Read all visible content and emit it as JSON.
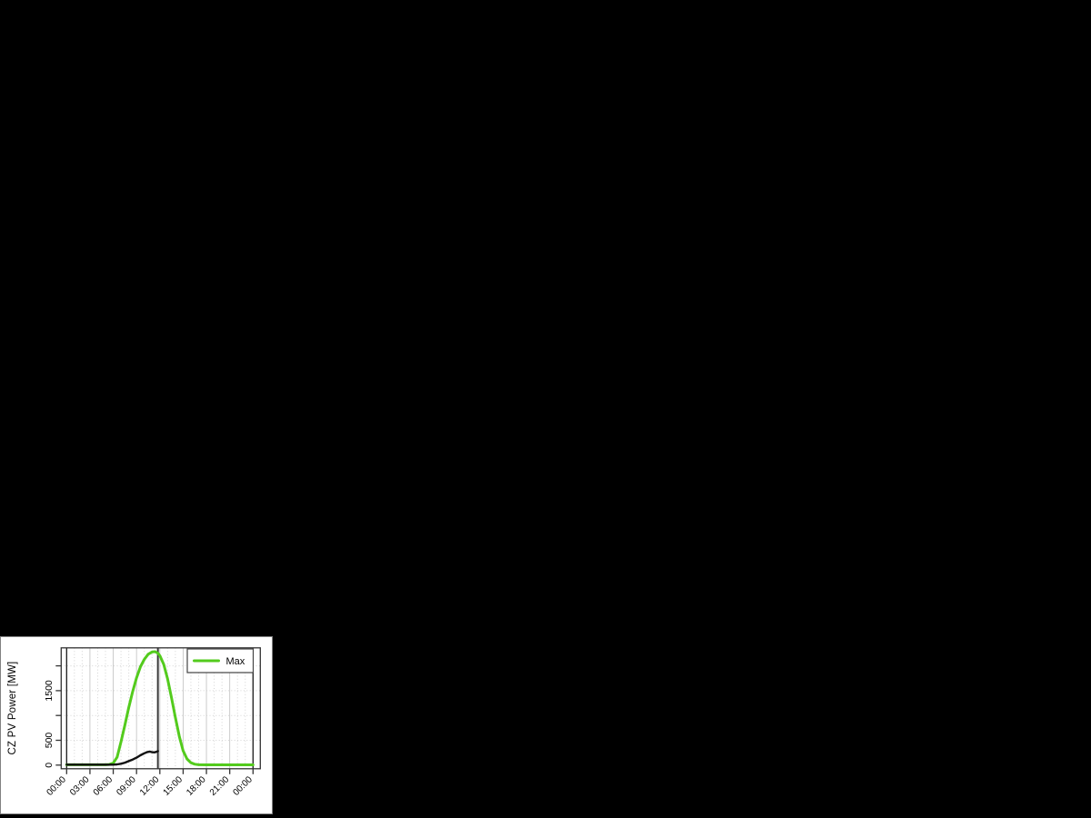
{
  "page": {
    "background": "#000000",
    "panel": {
      "background": "#ffffff",
      "border_color": "#828282"
    }
  },
  "chart_data": {
    "type": "line",
    "title": "",
    "xlabel": "",
    "ylabel": "CZ PV Power [MW]",
    "x_unit": "time_of_day_hours",
    "xlim": [
      0,
      24
    ],
    "ylim": [
      0,
      2370
    ],
    "grid": true,
    "x_ticks_hours": [
      0,
      3,
      6,
      9,
      12,
      15,
      18,
      21,
      24
    ],
    "x_tick_labels": [
      "00:00",
      "03:00",
      "06:00",
      "09:00",
      "12:00",
      "15:00",
      "18:00",
      "21:00",
      "00:00"
    ],
    "y_ticks": [
      0,
      500,
      1000,
      1500,
      2000
    ],
    "y_tick_labels": [
      "0",
      "500",
      "",
      "1500",
      ""
    ],
    "axis_color": "#333333",
    "grid_minor_color": "#d4d4d4",
    "grid_major_color": "#c6c6c6",
    "midnight_line_hours": [
      0,
      24
    ],
    "midnight_line_color": "#1a1a1a",
    "now_line_hour": 11.75,
    "now_line_color": "#3a3a3a",
    "legend": {
      "position": "top-right",
      "entries": [
        {
          "label": "Max",
          "color": "#53cb1d"
        }
      ]
    },
    "series": [
      {
        "name": "Max",
        "in_legend": true,
        "color": "#53cb1d",
        "points": [
          [
            0,
            8
          ],
          [
            1,
            8
          ],
          [
            2,
            8
          ],
          [
            3,
            8
          ],
          [
            4,
            8
          ],
          [
            5,
            8
          ],
          [
            5.5,
            12
          ],
          [
            6,
            40
          ],
          [
            6.5,
            160
          ],
          [
            7,
            470
          ],
          [
            7.5,
            810
          ],
          [
            8,
            1160
          ],
          [
            8.5,
            1480
          ],
          [
            9,
            1760
          ],
          [
            9.5,
            1980
          ],
          [
            10,
            2130
          ],
          [
            10.5,
            2235
          ],
          [
            11,
            2280
          ],
          [
            11.4,
            2285
          ],
          [
            11.75,
            2255
          ],
          [
            12,
            2205
          ],
          [
            12.5,
            2030
          ],
          [
            13,
            1740
          ],
          [
            13.5,
            1360
          ],
          [
            14,
            960
          ],
          [
            14.5,
            580
          ],
          [
            15,
            290
          ],
          [
            15.5,
            125
          ],
          [
            16,
            48
          ],
          [
            16.5,
            18
          ],
          [
            17,
            8
          ],
          [
            18,
            6
          ],
          [
            19,
            6
          ],
          [
            20,
            6
          ],
          [
            21,
            6
          ],
          [
            22,
            6
          ],
          [
            23,
            6
          ],
          [
            24,
            6
          ]
        ]
      },
      {
        "name": "",
        "in_legend": false,
        "color": "#111111",
        "points": [
          [
            0,
            10
          ],
          [
            1,
            10
          ],
          [
            2,
            10
          ],
          [
            3,
            10
          ],
          [
            4,
            10
          ],
          [
            5,
            10
          ],
          [
            6,
            10
          ],
          [
            6.5,
            14
          ],
          [
            7,
            28
          ],
          [
            7.5,
            50
          ],
          [
            8,
            80
          ],
          [
            8.5,
            112
          ],
          [
            9,
            150
          ],
          [
            9.5,
            198
          ],
          [
            10,
            238
          ],
          [
            10.4,
            264
          ],
          [
            10.7,
            272
          ],
          [
            11,
            260
          ],
          [
            11.3,
            257
          ],
          [
            11.55,
            268
          ],
          [
            11.75,
            282
          ]
        ]
      }
    ]
  }
}
